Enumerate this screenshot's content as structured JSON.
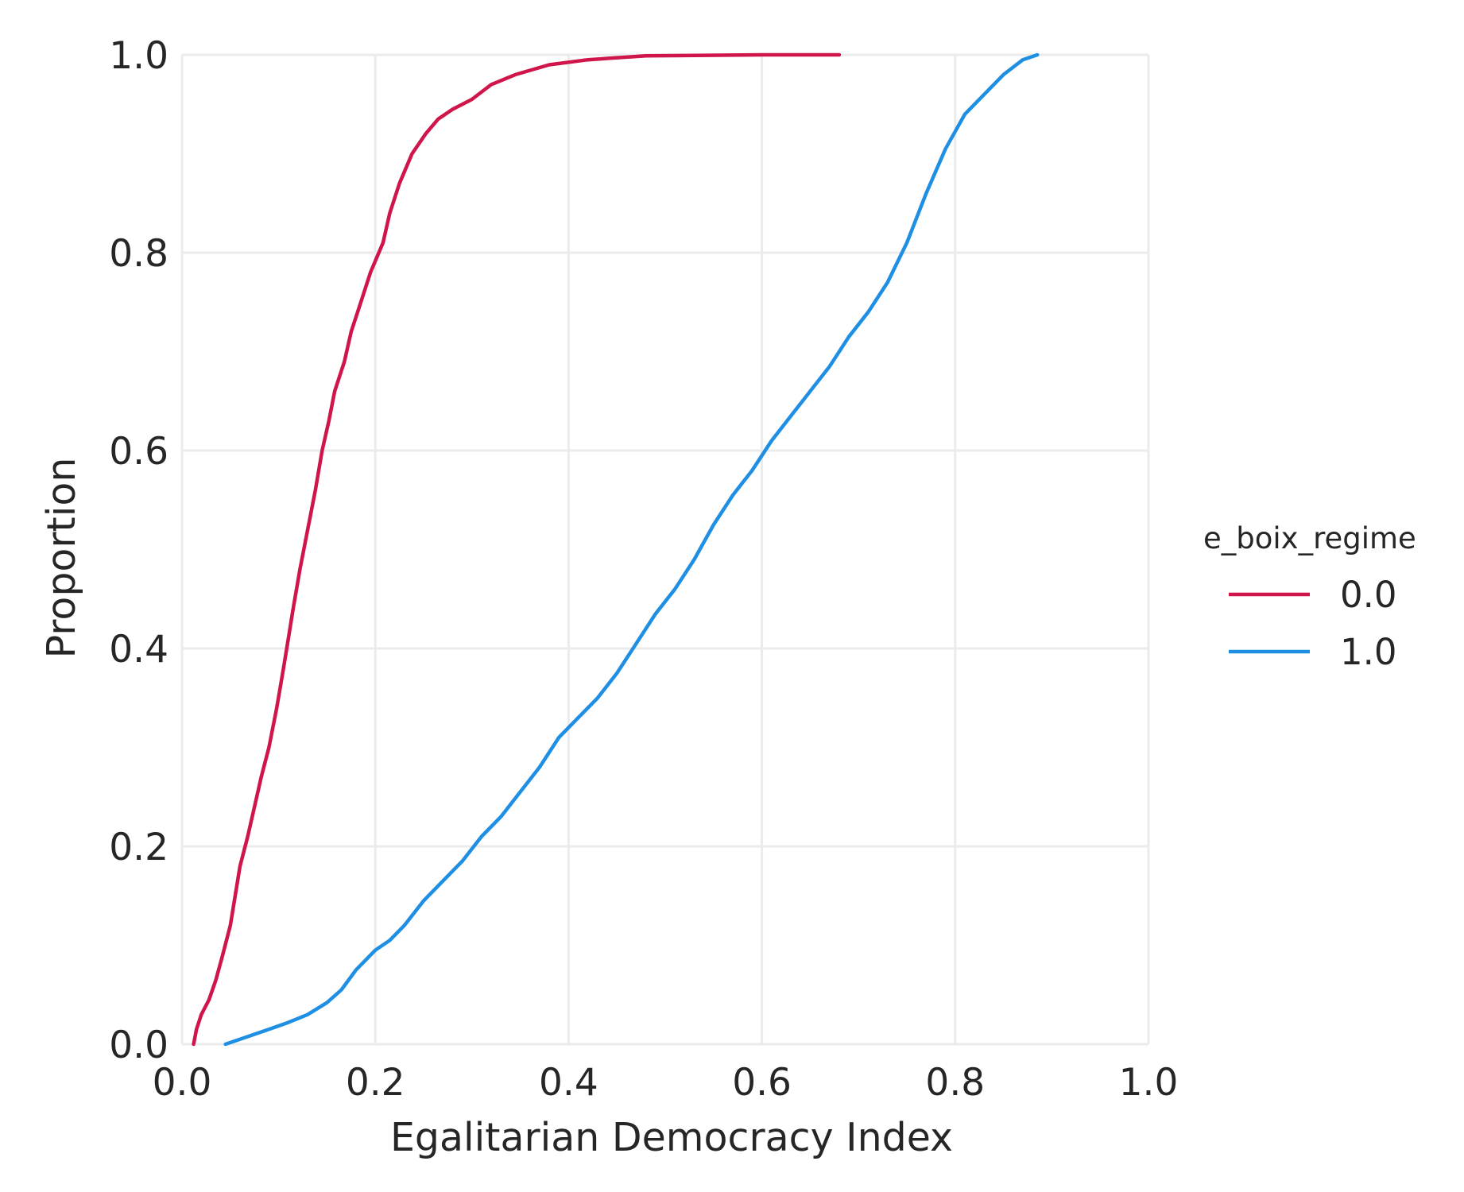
{
  "chart_data": {
    "type": "line",
    "title": "",
    "xlabel": "Egalitarian Democracy Index",
    "ylabel": "Proportion",
    "xlim": [
      0.0,
      1.0
    ],
    "ylim": [
      0.0,
      1.0
    ],
    "x_ticks": [
      "0.0",
      "0.2",
      "0.4",
      "0.6",
      "0.8",
      "1.0"
    ],
    "y_ticks": [
      "0.0",
      "0.2",
      "0.4",
      "0.6",
      "0.8",
      "1.0"
    ],
    "grid": true,
    "legend": {
      "title": "e_boix_regime",
      "placement": "right",
      "entries": [
        "0.0",
        "1.0"
      ]
    },
    "series": [
      {
        "name": "0.0",
        "color": "#d0154a",
        "points": [
          [
            0.012,
            0.0
          ],
          [
            0.015,
            0.015
          ],
          [
            0.02,
            0.03
          ],
          [
            0.028,
            0.045
          ],
          [
            0.035,
            0.065
          ],
          [
            0.042,
            0.09
          ],
          [
            0.05,
            0.12
          ],
          [
            0.055,
            0.15
          ],
          [
            0.06,
            0.18
          ],
          [
            0.068,
            0.21
          ],
          [
            0.075,
            0.24
          ],
          [
            0.082,
            0.27
          ],
          [
            0.09,
            0.3
          ],
          [
            0.098,
            0.34
          ],
          [
            0.105,
            0.38
          ],
          [
            0.11,
            0.41
          ],
          [
            0.115,
            0.44
          ],
          [
            0.122,
            0.48
          ],
          [
            0.13,
            0.52
          ],
          [
            0.138,
            0.56
          ],
          [
            0.145,
            0.6
          ],
          [
            0.152,
            0.63
          ],
          [
            0.158,
            0.66
          ],
          [
            0.168,
            0.69
          ],
          [
            0.175,
            0.72
          ],
          [
            0.185,
            0.75
          ],
          [
            0.195,
            0.78
          ],
          [
            0.208,
            0.81
          ],
          [
            0.215,
            0.84
          ],
          [
            0.225,
            0.87
          ],
          [
            0.238,
            0.9
          ],
          [
            0.252,
            0.92
          ],
          [
            0.265,
            0.935
          ],
          [
            0.28,
            0.945
          ],
          [
            0.3,
            0.955
          ],
          [
            0.32,
            0.97
          ],
          [
            0.345,
            0.98
          ],
          [
            0.38,
            0.99
          ],
          [
            0.42,
            0.995
          ],
          [
            0.48,
            0.999
          ],
          [
            0.6,
            1.0
          ],
          [
            0.68,
            1.0
          ]
        ]
      },
      {
        "name": "1.0",
        "color": "#1f8fe3",
        "points": [
          [
            0.045,
            0.0
          ],
          [
            0.06,
            0.005
          ],
          [
            0.075,
            0.01
          ],
          [
            0.09,
            0.015
          ],
          [
            0.11,
            0.022
          ],
          [
            0.13,
            0.03
          ],
          [
            0.15,
            0.042
          ],
          [
            0.165,
            0.055
          ],
          [
            0.18,
            0.075
          ],
          [
            0.2,
            0.095
          ],
          [
            0.215,
            0.105
          ],
          [
            0.23,
            0.12
          ],
          [
            0.25,
            0.145
          ],
          [
            0.27,
            0.165
          ],
          [
            0.29,
            0.185
          ],
          [
            0.31,
            0.21
          ],
          [
            0.33,
            0.23
          ],
          [
            0.35,
            0.255
          ],
          [
            0.37,
            0.28
          ],
          [
            0.39,
            0.31
          ],
          [
            0.41,
            0.33
          ],
          [
            0.43,
            0.35
          ],
          [
            0.45,
            0.375
          ],
          [
            0.47,
            0.405
          ],
          [
            0.49,
            0.435
          ],
          [
            0.51,
            0.46
          ],
          [
            0.53,
            0.49
          ],
          [
            0.55,
            0.525
          ],
          [
            0.57,
            0.555
          ],
          [
            0.59,
            0.58
          ],
          [
            0.61,
            0.61
          ],
          [
            0.63,
            0.635
          ],
          [
            0.65,
            0.66
          ],
          [
            0.67,
            0.685
          ],
          [
            0.69,
            0.715
          ],
          [
            0.71,
            0.74
          ],
          [
            0.73,
            0.77
          ],
          [
            0.75,
            0.81
          ],
          [
            0.77,
            0.86
          ],
          [
            0.79,
            0.905
          ],
          [
            0.81,
            0.94
          ],
          [
            0.83,
            0.96
          ],
          [
            0.85,
            0.98
          ],
          [
            0.87,
            0.995
          ],
          [
            0.885,
            1.0
          ]
        ]
      }
    ]
  }
}
